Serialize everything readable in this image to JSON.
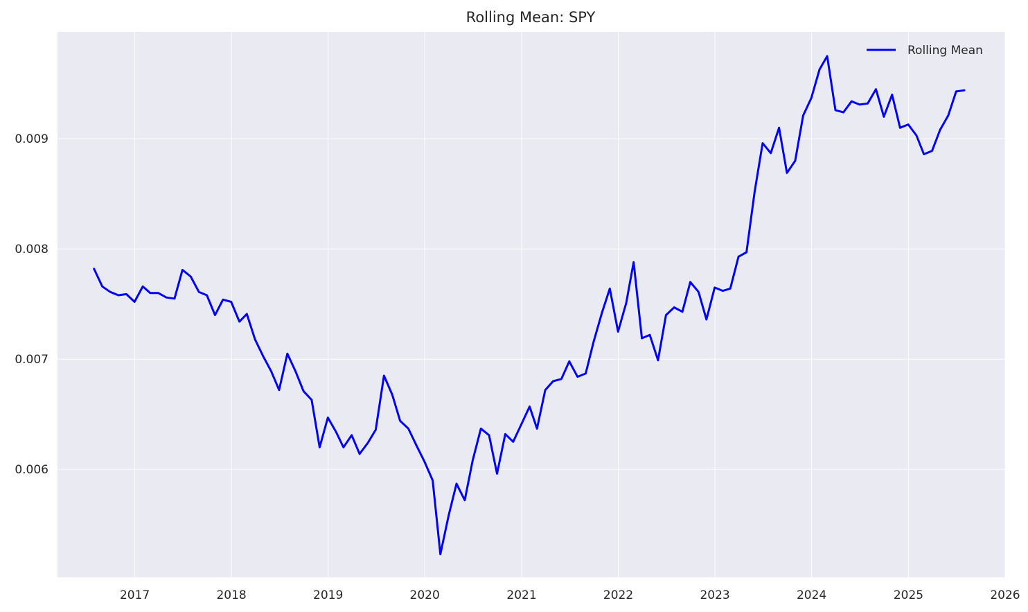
{
  "chart_data": {
    "type": "line",
    "title": "Rolling Mean: SPY",
    "xlabel": "",
    "ylabel": "",
    "x_ticks": [
      "2017",
      "2018",
      "2019",
      "2020",
      "2021",
      "2022",
      "2023",
      "2024",
      "2025",
      "2026"
    ],
    "y_ticks": [
      "0.006",
      "0.007",
      "0.008",
      "0.009"
    ],
    "xlim": [
      "2016-03-15",
      "2026-01-01"
    ],
    "ylim": [
      0.00502,
      0.00997
    ],
    "grid": true,
    "legend_position": "top-right",
    "colors": {
      "background": "#eaeaf2",
      "line": "#0000ff",
      "grid": "#ffffff"
    },
    "series": [
      {
        "name": "Rolling Mean",
        "x": [
          "2016-07-31",
          "2016-08-31",
          "2016-09-30",
          "2016-10-31",
          "2016-11-30",
          "2016-12-31",
          "2017-01-31",
          "2017-02-28",
          "2017-03-31",
          "2017-04-30",
          "2017-05-31",
          "2017-06-30",
          "2017-07-31",
          "2017-08-31",
          "2017-09-30",
          "2017-10-31",
          "2017-11-30",
          "2017-12-31",
          "2018-01-31",
          "2018-02-28",
          "2018-03-31",
          "2018-04-30",
          "2018-05-31",
          "2018-06-30",
          "2018-07-31",
          "2018-08-31",
          "2018-09-30",
          "2018-10-31",
          "2018-11-30",
          "2018-12-31",
          "2019-01-31",
          "2019-02-28",
          "2019-03-31",
          "2019-04-30",
          "2019-05-31",
          "2019-06-30",
          "2019-07-31",
          "2019-08-31",
          "2019-09-30",
          "2019-10-31",
          "2019-11-30",
          "2019-12-31",
          "2020-01-31",
          "2020-02-29",
          "2020-03-31",
          "2020-04-30",
          "2020-05-31",
          "2020-06-30",
          "2020-07-31",
          "2020-08-31",
          "2020-09-30",
          "2020-10-31",
          "2020-11-30",
          "2020-12-31",
          "2021-01-31",
          "2021-02-28",
          "2021-03-31",
          "2021-04-30",
          "2021-05-31",
          "2021-06-30",
          "2021-07-31",
          "2021-08-31",
          "2021-09-30",
          "2021-10-31",
          "2021-11-30",
          "2021-12-31",
          "2022-01-31",
          "2022-02-28",
          "2022-03-31",
          "2022-04-30",
          "2022-05-31",
          "2022-06-30",
          "2022-07-31",
          "2022-08-31",
          "2022-09-30",
          "2022-10-31",
          "2022-11-30",
          "2022-12-31",
          "2023-01-31",
          "2023-02-28",
          "2023-03-31",
          "2023-04-30",
          "2023-05-31",
          "2023-06-30",
          "2023-07-31",
          "2023-08-31",
          "2023-09-30",
          "2023-10-31",
          "2023-11-30",
          "2023-12-31",
          "2024-01-31",
          "2024-02-29",
          "2024-03-31",
          "2024-04-30",
          "2024-05-31",
          "2024-06-30",
          "2024-07-31",
          "2024-08-31",
          "2024-09-30",
          "2024-10-31",
          "2024-11-30",
          "2024-12-31",
          "2025-01-31",
          "2025-02-28",
          "2025-03-31",
          "2025-04-30",
          "2025-05-31",
          "2025-06-30",
          "2025-07-31"
        ],
        "y": [
          0.00782,
          0.00766,
          0.00761,
          0.00758,
          0.00759,
          0.00752,
          0.00766,
          0.0076,
          0.0076,
          0.00756,
          0.00755,
          0.00781,
          0.00775,
          0.00761,
          0.00758,
          0.0074,
          0.00754,
          0.00752,
          0.00734,
          0.00741,
          0.00718,
          0.00703,
          0.00689,
          0.00672,
          0.00705,
          0.00689,
          0.00671,
          0.00663,
          0.0062,
          0.00647,
          0.00634,
          0.0062,
          0.00631,
          0.00614,
          0.00624,
          0.00636,
          0.00685,
          0.00668,
          0.00644,
          0.00637,
          0.00622,
          0.00607,
          0.0059,
          0.00523,
          0.00558,
          0.00587,
          0.00572,
          0.00608,
          0.00637,
          0.00631,
          0.00596,
          0.00632,
          0.00625,
          0.00641,
          0.00657,
          0.00637,
          0.00672,
          0.0068,
          0.00682,
          0.00698,
          0.00684,
          0.00687,
          0.00716,
          0.00742,
          0.00764,
          0.00725,
          0.00751,
          0.00788,
          0.00719,
          0.00722,
          0.00699,
          0.0074,
          0.00747,
          0.00743,
          0.0077,
          0.00761,
          0.00736,
          0.00765,
          0.00762,
          0.00764,
          0.00793,
          0.00797,
          0.00852,
          0.00896,
          0.00887,
          0.0091,
          0.00869,
          0.0088,
          0.00921,
          0.00937,
          0.00963,
          0.00975,
          0.00926,
          0.00924,
          0.00934,
          0.00931,
          0.00932,
          0.00945,
          0.0092,
          0.0094,
          0.0091,
          0.00913,
          0.00903,
          0.00886,
          0.00889,
          0.00908,
          0.00921,
          0.00943,
          0.00944
        ]
      }
    ]
  }
}
